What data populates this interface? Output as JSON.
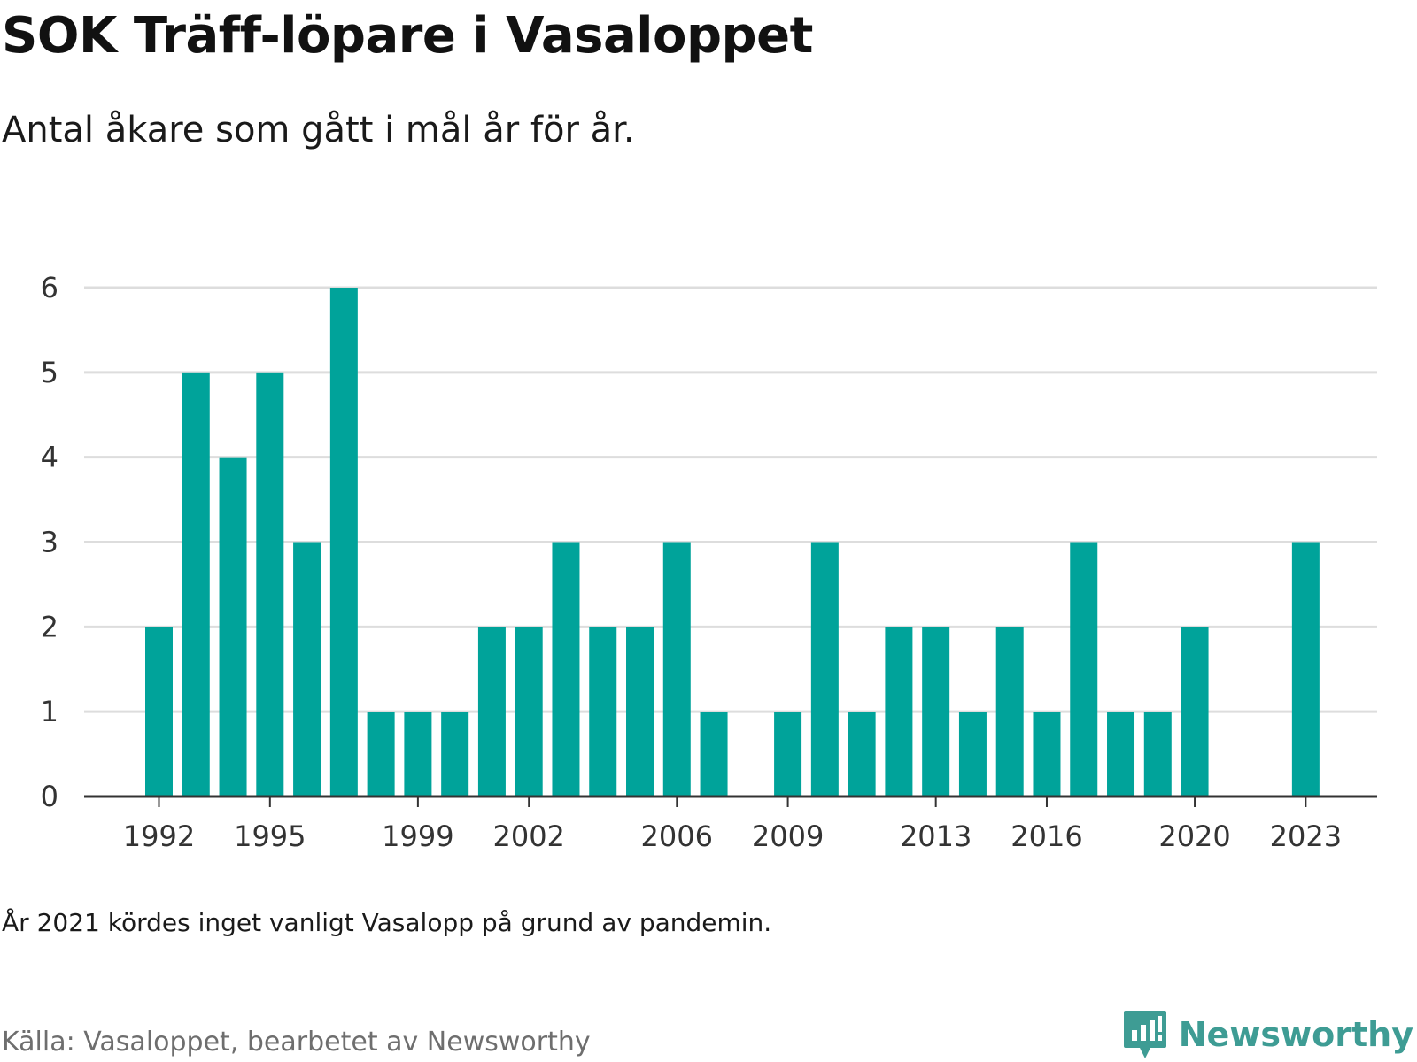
{
  "header": {
    "title": "SOK Träff-löpare i Vasaloppet",
    "subtitle": "Antal åkare som gått i mål år för år."
  },
  "footer": {
    "note": "År 2021 kördes inget vanligt Vasalopp på grund av pandemin.",
    "source": "Källa: Vasaloppet, bearbetet av Newsworthy",
    "brand_name": "Newsworthy"
  },
  "colors": {
    "bar": "#00a39a",
    "grid": "#dddddd",
    "axis": "#333333",
    "brand": "#3e9c94"
  },
  "chart_data": {
    "type": "bar",
    "title": "SOK Träff-löpare i Vasaloppet",
    "subtitle": "Antal åkare som gått i mål år för år.",
    "categories": [
      1992,
      1993,
      1994,
      1995,
      1996,
      1997,
      1998,
      1999,
      2000,
      2001,
      2002,
      2003,
      2004,
      2005,
      2006,
      2007,
      2008,
      2009,
      2010,
      2011,
      2012,
      2013,
      2014,
      2015,
      2016,
      2017,
      2018,
      2019,
      2020,
      2021,
      2022,
      2023
    ],
    "values": [
      2,
      5,
      4,
      5,
      3,
      6,
      1,
      1,
      1,
      2,
      2,
      3,
      2,
      2,
      3,
      1,
      0,
      1,
      3,
      1,
      2,
      2,
      1,
      2,
      1,
      3,
      1,
      1,
      2,
      0,
      0,
      3
    ],
    "x_tick_labels": [
      1992,
      1995,
      1999,
      2002,
      2006,
      2009,
      2013,
      2016,
      2020,
      2023
    ],
    "y_ticks": [
      0,
      1,
      2,
      3,
      4,
      5,
      6
    ],
    "ylim": [
      0,
      6
    ],
    "grid": true,
    "legend": "none"
  }
}
